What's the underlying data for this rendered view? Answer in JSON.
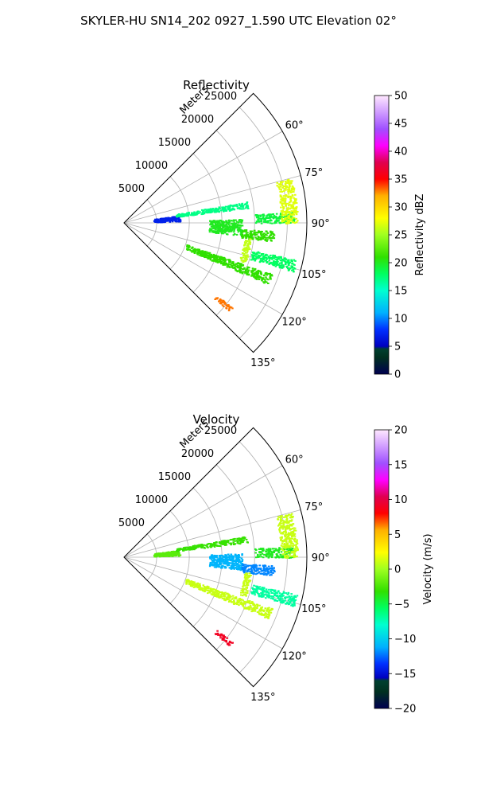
{
  "figure": {
    "suptitle": "SKYLER-HU  SN14_202  0927_1.590 UTC Elevation 02°"
  },
  "chart_data": [
    {
      "type": "heatmap",
      "projection": "polar-sector",
      "title": "Reflectivity",
      "radial_axis_label": "Meters",
      "range_m": [
        0,
        28000
      ],
      "azimuth_deg": [
        45,
        135
      ],
      "radial_ticks": [
        5000,
        10000,
        15000,
        20000,
        25000
      ],
      "radial_tick_labels": [
        "5000",
        "10000",
        "15000",
        "20000",
        "25000"
      ],
      "azimuth_ticks": [
        60,
        75,
        90,
        105,
        120,
        135
      ],
      "azimuth_tick_labels": [
        "60°",
        "75°",
        "90°",
        "105°",
        "120°",
        "135°"
      ],
      "grid": true,
      "colorbar": {
        "label": "Reflectivity dBZ",
        "range": [
          0,
          50
        ],
        "ticks": [
          0,
          5,
          10,
          15,
          20,
          25,
          30,
          35,
          40,
          45,
          50
        ],
        "tick_labels": [
          "0",
          "5",
          "10",
          "15",
          "20",
          "25",
          "30",
          "35",
          "40",
          "45",
          "50"
        ]
      },
      "echoes": [
        {
          "az_deg": [
            82,
            88
          ],
          "range_m": [
            4500,
            8500
          ],
          "value": 7
        },
        {
          "az_deg": [
            80,
            83
          ],
          "range_m": [
            8000,
            19000
          ],
          "value": 17
        },
        {
          "az_deg": [
            88,
            96
          ],
          "range_m": [
            13000,
            18000
          ],
          "value": 20
        },
        {
          "az_deg": [
            93,
            97
          ],
          "range_m": [
            18000,
            23000
          ],
          "value": 21
        },
        {
          "az_deg": [
            86,
            90
          ],
          "range_m": [
            20000,
            26000
          ],
          "value": 19
        },
        {
          "az_deg": [
            102,
            106
          ],
          "range_m": [
            20000,
            27000
          ],
          "value": 18
        },
        {
          "az_deg": [
            109,
            113
          ],
          "range_m": [
            10000,
            24000
          ],
          "value": 21
        },
        {
          "az_deg": [
            97,
            108
          ],
          "range_m": [
            18500,
            19500
          ],
          "value": 26
        },
        {
          "az_deg": [
            75,
            90
          ],
          "range_m": [
            24000,
            26500
          ],
          "value": 27
        },
        {
          "az_deg": [
            128,
            130
          ],
          "range_m": [
            18000,
            21000
          ],
          "value": 33
        }
      ]
    },
    {
      "type": "heatmap",
      "projection": "polar-sector",
      "title": "Velocity",
      "radial_axis_label": "Meters",
      "range_m": [
        0,
        28000
      ],
      "azimuth_deg": [
        45,
        135
      ],
      "radial_ticks": [
        5000,
        10000,
        15000,
        20000,
        25000
      ],
      "radial_tick_labels": [
        "5000",
        "10000",
        "15000",
        "20000",
        "25000"
      ],
      "azimuth_ticks": [
        60,
        75,
        90,
        105,
        120,
        135
      ],
      "azimuth_tick_labels": [
        "60°",
        "75°",
        "90°",
        "105°",
        "120°",
        "135°"
      ],
      "grid": true,
      "colorbar": {
        "label": "Velocity (m/s)",
        "range": [
          -20,
          20
        ],
        "ticks": [
          -20,
          -15,
          -10,
          -5,
          0,
          5,
          10,
          15,
          20
        ],
        "tick_labels": [
          "−20",
          "−15",
          "−10",
          "−5",
          "0",
          "5",
          "10",
          "15",
          "20"
        ]
      },
      "echoes": [
        {
          "az_deg": [
            82,
            88
          ],
          "range_m": [
            4500,
            8500
          ],
          "value": -2
        },
        {
          "az_deg": [
            80,
            83
          ],
          "range_m": [
            8000,
            19000
          ],
          "value": -3
        },
        {
          "az_deg": [
            88,
            96
          ],
          "range_m": [
            13000,
            18000
          ],
          "value": -11
        },
        {
          "az_deg": [
            93,
            97
          ],
          "range_m": [
            18000,
            23000
          ],
          "value": -12
        },
        {
          "az_deg": [
            86,
            90
          ],
          "range_m": [
            20000,
            26000
          ],
          "value": -4
        },
        {
          "az_deg": [
            102,
            106
          ],
          "range_m": [
            20000,
            27000
          ],
          "value": -7
        },
        {
          "az_deg": [
            109,
            113
          ],
          "range_m": [
            10000,
            24000
          ],
          "value": 1
        },
        {
          "az_deg": [
            97,
            108
          ],
          "range_m": [
            18500,
            19500
          ],
          "value": 1
        },
        {
          "az_deg": [
            75,
            90
          ],
          "range_m": [
            24000,
            26500
          ],
          "value": 1
        },
        {
          "az_deg": [
            128,
            130
          ],
          "range_m": [
            18000,
            21000
          ],
          "value": 9
        }
      ]
    }
  ]
}
